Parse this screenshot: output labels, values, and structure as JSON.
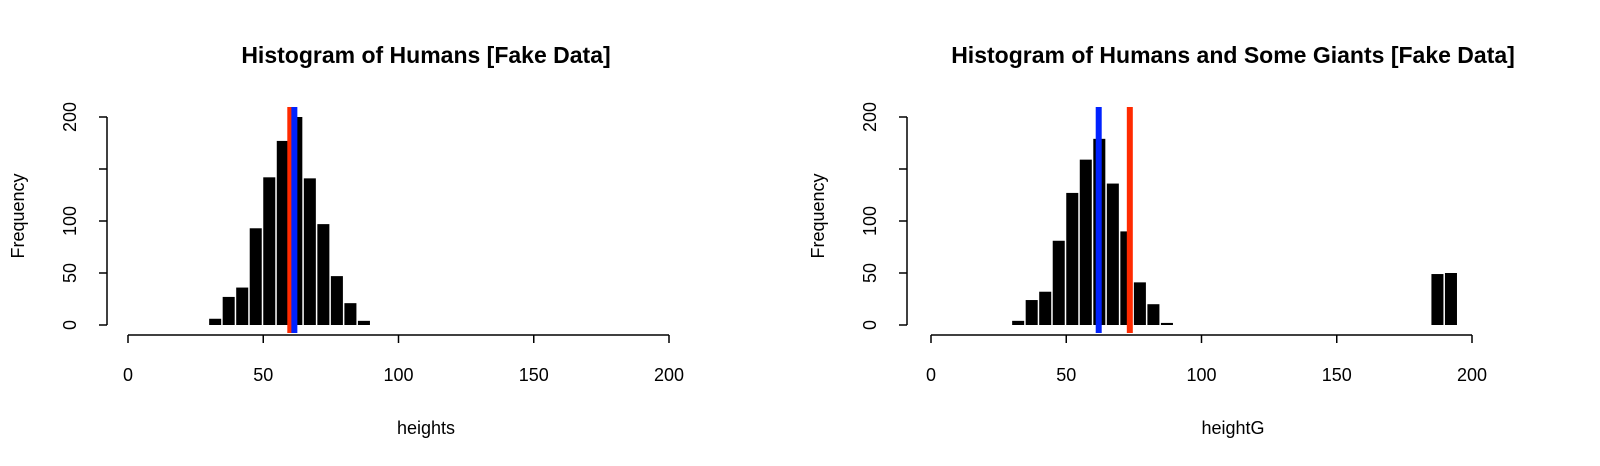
{
  "chart_data": [
    {
      "type": "bar",
      "title": "Histogram of Humans [Fake Data]",
      "xlabel": "heights",
      "ylabel": "Frequency",
      "xlim": [
        0,
        200
      ],
      "ylim": [
        0,
        200
      ],
      "x_ticks": [
        0,
        50,
        100,
        150,
        200
      ],
      "y_ticks": [
        0,
        50,
        100,
        200
      ],
      "bins": [
        [
          30,
          35
        ],
        [
          35,
          40
        ],
        [
          40,
          45
        ],
        [
          45,
          50
        ],
        [
          50,
          55
        ],
        [
          55,
          60
        ],
        [
          60,
          65
        ],
        [
          65,
          70
        ],
        [
          70,
          75
        ],
        [
          75,
          80
        ],
        [
          80,
          85
        ],
        [
          85,
          90
        ]
      ],
      "values": [
        6,
        27,
        36,
        93,
        142,
        177,
        200,
        141,
        97,
        47,
        21,
        4
      ],
      "reference_lines": [
        {
          "x": 60,
          "color": "#ff2a00"
        },
        {
          "x": 61.5,
          "color": "#0022ff"
        }
      ],
      "grid": false
    },
    {
      "type": "bar",
      "title": "Histogram of Humans and Some Giants [Fake Data]",
      "xlabel": "heightG",
      "ylabel": "Frequency",
      "xlim": [
        0,
        200
      ],
      "ylim": [
        0,
        200
      ],
      "x_ticks": [
        0,
        50,
        100,
        150,
        200
      ],
      "y_ticks": [
        0,
        50,
        100,
        200
      ],
      "bins": [
        [
          30,
          35
        ],
        [
          35,
          40
        ],
        [
          40,
          45
        ],
        [
          45,
          50
        ],
        [
          50,
          55
        ],
        [
          55,
          60
        ],
        [
          60,
          65
        ],
        [
          65,
          70
        ],
        [
          70,
          75
        ],
        [
          75,
          80
        ],
        [
          80,
          85
        ],
        [
          85,
          90
        ],
        [
          185,
          190
        ],
        [
          190,
          195
        ]
      ],
      "values": [
        4,
        24,
        32,
        81,
        127,
        159,
        179,
        136,
        90,
        41,
        20,
        2,
        49,
        50
      ],
      "reference_lines": [
        {
          "x": 62,
          "color": "#0022ff"
        },
        {
          "x": 73.5,
          "color": "#ff2a00"
        }
      ],
      "grid": false
    }
  ]
}
